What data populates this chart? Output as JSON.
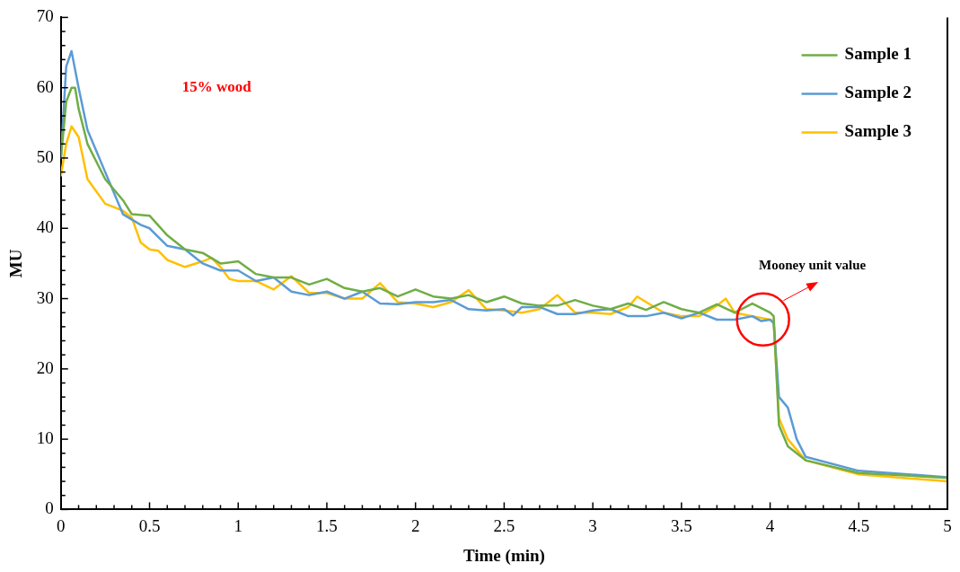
{
  "chart_data": {
    "type": "line",
    "xlabel": "Time (min)",
    "ylabel": "MU",
    "legend": "top right",
    "marker": "none",
    "line_style": "solid",
    "grid": false,
    "xlim": [
      0,
      5
    ],
    "ylim": [
      0,
      70
    ],
    "xticks": [
      0,
      {
        "value": 0.1,
        "label": null
      },
      {
        "value": 0.2,
        "label": null
      },
      {
        "value": 0.3,
        "label": null
      },
      {
        "value": 0.4,
        "label": null
      },
      0.5,
      {
        "value": 0.6,
        "label": null
      },
      {
        "value": 0.7,
        "label": null
      },
      {
        "value": 0.8,
        "label": null
      },
      {
        "value": 0.9,
        "label": null
      },
      1,
      {
        "value": 1.1,
        "label": null
      },
      {
        "value": 1.2,
        "label": null
      },
      {
        "value": 1.3,
        "label": null
      },
      {
        "value": 1.4,
        "label": null
      },
      1.5,
      {
        "value": 1.6,
        "label": null
      },
      {
        "value": 1.7,
        "label": null
      },
      {
        "value": 1.8,
        "label": null
      },
      {
        "value": 1.9,
        "label": null
      },
      2,
      {
        "value": 2.1,
        "label": null
      },
      {
        "value": 2.2,
        "label": null
      },
      {
        "value": 2.3,
        "label": null
      },
      {
        "value": 2.4,
        "label": null
      },
      2.5,
      {
        "value": 2.6,
        "label": null
      },
      {
        "value": 2.7,
        "label": null
      },
      {
        "value": 2.8,
        "label": null
      },
      {
        "value": 2.9,
        "label": null
      },
      3,
      {
        "value": 3.1,
        "label": null
      },
      {
        "value": 3.2,
        "label": null
      },
      {
        "value": 3.3,
        "label": null
      },
      {
        "value": 3.4,
        "label": null
      },
      3.5,
      {
        "value": 3.6,
        "label": null
      },
      {
        "value": 3.7,
        "label": null
      },
      {
        "value": 3.8,
        "label": null
      },
      {
        "value": 3.9,
        "label": null
      },
      4,
      {
        "value": 4.1,
        "label": null
      },
      {
        "value": 4.2,
        "label": null
      },
      {
        "value": 4.3,
        "label": null
      },
      {
        "value": 4.4,
        "label": null
      },
      4.5,
      {
        "value": 4.6,
        "label": null
      },
      {
        "value": 4.7,
        "label": null
      },
      {
        "value": 4.8,
        "label": null
      },
      {
        "value": 4.9,
        "label": null
      },
      5
    ],
    "yticks": [
      0,
      {
        "value": 2,
        "label": null
      },
      {
        "value": 4,
        "label": null
      },
      {
        "value": 6,
        "label": null
      },
      {
        "value": 8,
        "label": null
      },
      10,
      {
        "value": 12,
        "label": null
      },
      {
        "value": 14,
        "label": null
      },
      {
        "value": 16,
        "label": null
      },
      {
        "value": 18,
        "label": null
      },
      20,
      {
        "value": 22,
        "label": null
      },
      {
        "value": 24,
        "label": null
      },
      {
        "value": 26,
        "label": null
      },
      {
        "value": 28,
        "label": null
      },
      30,
      {
        "value": 32,
        "label": null
      },
      {
        "value": 34,
        "label": null
      },
      {
        "value": 36,
        "label": null
      },
      {
        "value": 38,
        "label": null
      },
      40,
      {
        "value": 42,
        "label": null
      },
      {
        "value": 44,
        "label": null
      },
      {
        "value": 46,
        "label": null
      },
      {
        "value": 48,
        "label": null
      },
      50,
      {
        "value": 52,
        "label": null
      },
      {
        "value": 54,
        "label": null
      },
      {
        "value": 56,
        "label": null
      },
      {
        "value": 58,
        "label": null
      },
      60,
      {
        "value": 62,
        "label": null
      },
      {
        "value": 64,
        "label": null
      },
      {
        "value": 66,
        "label": null
      },
      {
        "value": 68,
        "label": null
      },
      70
    ],
    "annotations": [
      "15% wood",
      "Mooney unit value"
    ],
    "series": [
      {
        "name": "Sample 1",
        "color": "#70ad47",
        "x": [
          0,
          0.03,
          0.06,
          0.08,
          0.1,
          0.15,
          0.25,
          0.35,
          0.4,
          0.5,
          0.6,
          0.7,
          0.8,
          0.9,
          1.0,
          1.1,
          1.2,
          1.3,
          1.4,
          1.5,
          1.6,
          1.7,
          1.8,
          1.9,
          2.0,
          2.1,
          2.2,
          2.3,
          2.4,
          2.5,
          2.6,
          2.7,
          2.8,
          2.9,
          3.0,
          3.1,
          3.2,
          3.3,
          3.4,
          3.5,
          3.6,
          3.7,
          3.8,
          3.9,
          4.0,
          4.02,
          4.05,
          4.1,
          4.2,
          4.5,
          5.0
        ],
        "values": [
          50,
          58,
          60,
          60,
          57,
          52,
          47,
          44,
          42,
          41.8,
          39,
          37,
          36.5,
          35,
          35.3,
          33.5,
          33,
          33,
          32,
          32.8,
          31.5,
          31,
          31.5,
          30.3,
          31.3,
          30.3,
          30,
          30.5,
          29.5,
          30.3,
          29.3,
          29,
          29,
          29.8,
          29,
          28.5,
          29.3,
          28.4,
          29.5,
          28.5,
          28,
          29.2,
          28,
          29.3,
          28,
          27.5,
          12,
          9,
          7,
          5.2,
          4.5
        ]
      },
      {
        "name": "Sample 2",
        "color": "#5b9bd5",
        "x": [
          0,
          0.03,
          0.06,
          0.1,
          0.15,
          0.25,
          0.35,
          0.45,
          0.5,
          0.6,
          0.7,
          0.8,
          0.9,
          1.0,
          1.1,
          1.2,
          1.3,
          1.4,
          1.5,
          1.6,
          1.7,
          1.8,
          1.9,
          2.0,
          2.1,
          2.2,
          2.3,
          2.4,
          2.5,
          2.55,
          2.6,
          2.7,
          2.8,
          2.9,
          3.0,
          3.1,
          3.2,
          3.3,
          3.4,
          3.5,
          3.6,
          3.7,
          3.8,
          3.9,
          3.95,
          4.0,
          4.02,
          4.05,
          4.1,
          4.15,
          4.2,
          4.5,
          5.0
        ],
        "values": [
          50,
          63,
          65.2,
          60,
          54,
          48,
          42,
          40.5,
          40,
          37.5,
          37,
          35,
          34,
          34,
          32.5,
          33,
          31,
          30.5,
          31,
          30,
          31,
          29.3,
          29.2,
          29.5,
          29.5,
          29.8,
          28.5,
          28.3,
          28.5,
          27.6,
          28.8,
          28.8,
          27.8,
          27.8,
          28.3,
          28.5,
          27.5,
          27.5,
          28,
          27.2,
          28,
          27,
          27,
          27.5,
          26.8,
          27,
          26.5,
          16,
          14.5,
          10,
          7.5,
          5.5,
          4.6
        ]
      },
      {
        "name": "Sample 3",
        "color": "#ffc000",
        "x": [
          0,
          0.03,
          0.06,
          0.1,
          0.15,
          0.25,
          0.35,
          0.4,
          0.45,
          0.5,
          0.55,
          0.6,
          0.7,
          0.8,
          0.85,
          0.9,
          0.95,
          1.0,
          1.1,
          1.2,
          1.3,
          1.4,
          1.5,
          1.6,
          1.7,
          1.8,
          1.9,
          2.0,
          2.1,
          2.2,
          2.3,
          2.4,
          2.5,
          2.6,
          2.7,
          2.8,
          2.9,
          3.0,
          3.1,
          3.2,
          3.25,
          3.4,
          3.5,
          3.6,
          3.7,
          3.75,
          3.8,
          3.9,
          4.0,
          4.02,
          4.05,
          4.1,
          4.2,
          4.5,
          5.0
        ],
        "values": [
          47.5,
          52,
          54.5,
          53,
          47,
          43.5,
          42.5,
          41.5,
          38,
          37,
          36.8,
          35.5,
          34.5,
          35.3,
          35.8,
          34.5,
          32.8,
          32.5,
          32.5,
          31.3,
          33.2,
          30.8,
          30.8,
          30,
          30,
          32.2,
          29.5,
          29.3,
          28.8,
          29.5,
          31.2,
          28.5,
          28.3,
          28,
          28.5,
          30.5,
          28,
          28,
          27.8,
          28.8,
          30.3,
          28,
          27.5,
          27.5,
          29,
          30,
          28,
          27.5,
          27,
          26.8,
          13,
          10,
          7,
          5,
          4
        ]
      }
    ]
  }
}
